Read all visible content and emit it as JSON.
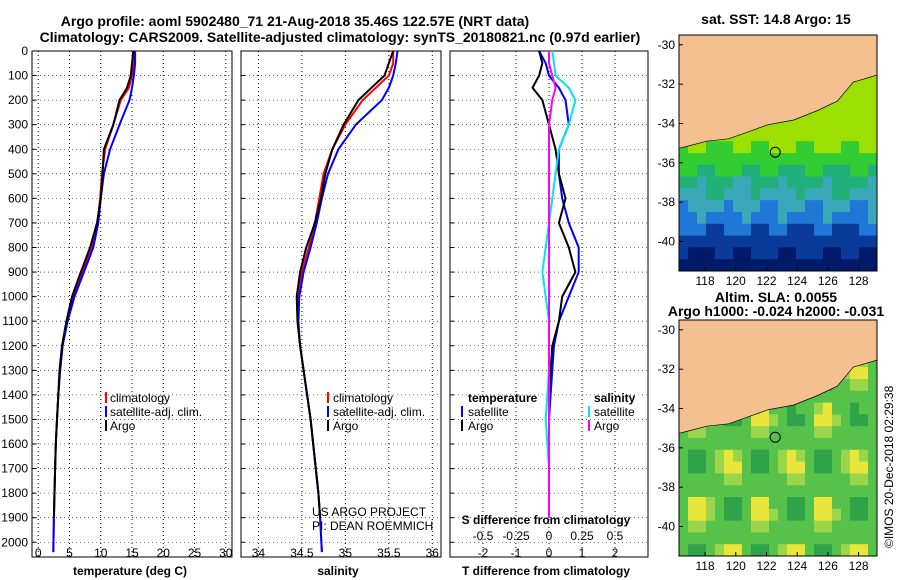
{
  "header": {
    "title_line1": "Argo profile: aoml 5902480_71 21-Aug-2018 35.46S 122.57E (NRT data)",
    "title_line2": "Climatology: CARS2009. Satellite-adjusted climatology: synTS_20180821.nc (0.97d earlier)"
  },
  "colors": {
    "climatology": "#ff0000",
    "satellite": "#0000ff",
    "argo": "#000000",
    "sat_salinity": "#00e5ee",
    "argo_salinity": "#ff00ff",
    "land": "#f5c08f"
  },
  "chart_data": [
    {
      "type": "line",
      "name": "temperature",
      "xlabel": "temperature (deg C)",
      "xlim": [
        -1,
        31
      ],
      "ylim": [
        2060,
        0
      ],
      "xticks": [
        "0",
        "5",
        "10",
        "15",
        "20",
        "25",
        "30"
      ],
      "yticks": [
        "0",
        "100",
        "200",
        "300",
        "400",
        "500",
        "600",
        "700",
        "800",
        "900",
        "1000",
        "1100",
        "1200",
        "1300",
        "1400",
        "1500",
        "1600",
        "1700",
        "1800",
        "1900",
        "2000"
      ],
      "legend": [
        "climatology",
        "satellite-adj. clim.",
        "Argo"
      ],
      "series": [
        {
          "name": "climatology",
          "color": "#ff0000",
          "x": [
            15.3,
            15.2,
            15.0,
            14.5,
            13.2,
            12.0,
            10.7,
            10.2,
            9.9,
            9.5,
            8.5,
            7.0,
            5.6,
            4.6,
            3.9,
            3.5,
            3.2,
            3.0,
            2.8,
            2.7,
            2.6,
            2.5,
            2.4
          ],
          "y": [
            0,
            50,
            100,
            150,
            200,
            300,
            400,
            500,
            600,
            700,
            800,
            900,
            1000,
            1100,
            1200,
            1300,
            1400,
            1500,
            1600,
            1700,
            1800,
            1900,
            2040
          ]
        },
        {
          "name": "satellite-adj. clim.",
          "color": "#0000ff",
          "x": [
            15.5,
            15.5,
            15.3,
            15.0,
            14.6,
            13.0,
            11.5,
            10.5,
            10.0,
            9.6,
            8.8,
            7.3,
            5.8,
            4.7,
            3.9,
            3.5,
            3.2,
            3.0,
            2.8,
            2.7,
            2.6,
            2.5,
            2.4
          ],
          "y": [
            0,
            50,
            100,
            150,
            200,
            300,
            400,
            500,
            600,
            700,
            800,
            900,
            1000,
            1100,
            1200,
            1300,
            1400,
            1500,
            1600,
            1700,
            1800,
            1900,
            2040
          ]
        },
        {
          "name": "Argo",
          "color": "#000000",
          "x": [
            15.2,
            15.0,
            14.8,
            14.2,
            13.0,
            12.0,
            10.5,
            10.3,
            10.0,
            9.4,
            8.3,
            6.8,
            5.4,
            4.5,
            3.8,
            3.4,
            3.2,
            3.0,
            2.8,
            2.7,
            2.6,
            2.5
          ],
          "y": [
            0,
            50,
            100,
            150,
            200,
            300,
            400,
            500,
            600,
            700,
            800,
            900,
            1000,
            1100,
            1200,
            1300,
            1400,
            1500,
            1600,
            1700,
            1800,
            1900
          ]
        }
      ]
    },
    {
      "type": "line",
      "name": "salinity",
      "xlabel": "salinity",
      "xlim": [
        33.8,
        36.1
      ],
      "ylim": [
        2060,
        0
      ],
      "xticks": [
        "34",
        "34.5",
        "35",
        "35.5",
        "36"
      ],
      "legend": [
        "climatology",
        "satellite-adj. clim.",
        "Argo"
      ],
      "series": [
        {
          "name": "climatology",
          "color": "#ff0000",
          "x": [
            35.55,
            35.55,
            35.5,
            35.35,
            35.2,
            35.0,
            34.85,
            34.75,
            34.7,
            34.65,
            34.58,
            34.5,
            34.45,
            34.45,
            34.48,
            34.52,
            34.56,
            34.6,
            34.63,
            34.66,
            34.69,
            34.71,
            34.73
          ],
          "y": [
            0,
            50,
            100,
            150,
            200,
            300,
            400,
            500,
            600,
            700,
            800,
            900,
            1000,
            1100,
            1200,
            1300,
            1400,
            1500,
            1600,
            1700,
            1800,
            1900,
            2040
          ]
        },
        {
          "name": "satellite-adj. clim.",
          "color": "#0000ff",
          "x": [
            35.6,
            35.58,
            35.55,
            35.5,
            35.42,
            35.12,
            34.92,
            34.8,
            34.73,
            34.67,
            34.6,
            34.52,
            34.47,
            34.46,
            34.48,
            34.52,
            34.56,
            34.6,
            34.63,
            34.66,
            34.69,
            34.71,
            34.73
          ],
          "y": [
            0,
            50,
            100,
            150,
            200,
            300,
            400,
            500,
            600,
            700,
            800,
            900,
            1000,
            1100,
            1200,
            1300,
            1400,
            1500,
            1600,
            1700,
            1800,
            1900,
            2040
          ]
        },
        {
          "name": "Argo",
          "color": "#000000",
          "x": [
            35.55,
            35.5,
            35.45,
            35.3,
            35.15,
            34.98,
            34.85,
            34.77,
            34.72,
            34.65,
            34.55,
            34.48,
            34.44,
            34.45,
            34.48,
            34.52,
            34.56,
            34.6,
            34.63,
            34.66,
            34.69,
            34.71
          ],
          "y": [
            0,
            50,
            100,
            150,
            200,
            300,
            400,
            500,
            600,
            700,
            800,
            900,
            1000,
            1100,
            1200,
            1300,
            1400,
            1500,
            1600,
            1700,
            1800,
            1900
          ]
        }
      ]
    },
    {
      "type": "line",
      "name": "differences",
      "xlabel": "T difference from climatology",
      "xlabel2": "S difference from climatology",
      "xlim": [
        -3,
        3
      ],
      "ylim": [
        2060,
        0
      ],
      "xticks": [
        "-2",
        "-1",
        "0",
        "1",
        "2"
      ],
      "xticks2": [
        "-0.5",
        "-0.25",
        "0",
        "0.25",
        "0.5"
      ],
      "legend_temperature": {
        "heading": "temperature",
        "items": [
          "satellite",
          "Argo"
        ]
      },
      "legend_salinity": {
        "heading": "salinity",
        "items": [
          "satellite",
          "Argo"
        ]
      },
      "series": [
        {
          "name": "T satellite",
          "color": "#0000ff",
          "x": [
            -0.3,
            -0.1,
            0.0,
            0.3,
            0.5,
            0.6,
            0.3,
            0.3,
            0.4,
            0.6,
            0.9,
            0.9,
            0.6,
            0.3,
            0.15,
            0.1,
            0.05,
            0.0,
            0.0,
            0.0,
            0.0
          ],
          "y": [
            0,
            50,
            100,
            150,
            200,
            300,
            400,
            500,
            600,
            700,
            800,
            900,
            1000,
            1100,
            1200,
            1300,
            1400,
            1500,
            1600,
            1700,
            1900
          ]
        },
        {
          "name": "T Argo",
          "color": "#000000",
          "x": [
            -0.3,
            -0.2,
            -0.3,
            -0.5,
            -0.2,
            0.0,
            0.2,
            0.3,
            0.5,
            0.3,
            0.6,
            0.8,
            0.4,
            0.3,
            0.1,
            0.05,
            0.0,
            0.0,
            0.0,
            0.0,
            0.0
          ],
          "y": [
            0,
            50,
            100,
            150,
            200,
            300,
            400,
            500,
            600,
            700,
            800,
            900,
            1000,
            1100,
            1200,
            1300,
            1400,
            1500,
            1600,
            1700,
            1900
          ]
        },
        {
          "name": "S satellite",
          "color": "#00e5ee",
          "x": [
            0.1,
            0.15,
            0.2,
            0.6,
            0.8,
            0.6,
            0.3,
            0.2,
            0.1,
            0.0,
            -0.1,
            -0.2,
            -0.1,
            0.0,
            0.0,
            0.0,
            -0.05,
            -0.1,
            -0.05,
            0.0,
            0.0
          ],
          "y": [
            0,
            50,
            100,
            150,
            200,
            300,
            400,
            500,
            600,
            700,
            800,
            900,
            1000,
            1100,
            1200,
            1300,
            1400,
            1500,
            1600,
            1700,
            1900
          ]
        },
        {
          "name": "S Argo",
          "color": "#ff00ff",
          "x": [
            0.0,
            0.0,
            0.1,
            0.2,
            0.1,
            0.0,
            0.0,
            0.0,
            0.0,
            0.0,
            0.0,
            0.0,
            0.0,
            0.0,
            0.0,
            0.0,
            0.0,
            0.0,
            0.0,
            0.0,
            0.0
          ],
          "y": [
            0,
            50,
            100,
            150,
            200,
            300,
            400,
            500,
            600,
            700,
            800,
            900,
            1000,
            1100,
            1200,
            1300,
            1400,
            1500,
            1600,
            1700,
            1900
          ]
        }
      ]
    }
  ],
  "maps": [
    {
      "title": "sat. SST: 14.8 Argo: 15",
      "xticks": [
        "118",
        "120",
        "122",
        "124",
        "126",
        "128"
      ],
      "yticks": [
        "-30",
        "-32",
        "-34",
        "-36",
        "-38",
        "-40"
      ]
    },
    {
      "title_line1": "Altim. SLA: 0.0055",
      "title_line2": "Argo h1000: -0.024 h2000: -0.031",
      "xticks": [
        "118",
        "120",
        "122",
        "124",
        "126",
        "128"
      ],
      "yticks": [
        "-30",
        "-32",
        "-34",
        "-36",
        "-38",
        "-40"
      ]
    }
  ],
  "credits": {
    "line1": "US ARGO PROJECT",
    "line2": "PI: DEAN ROEMMICH",
    "stamp": "©IMOS 20-Dec-2018 02:29:38"
  }
}
